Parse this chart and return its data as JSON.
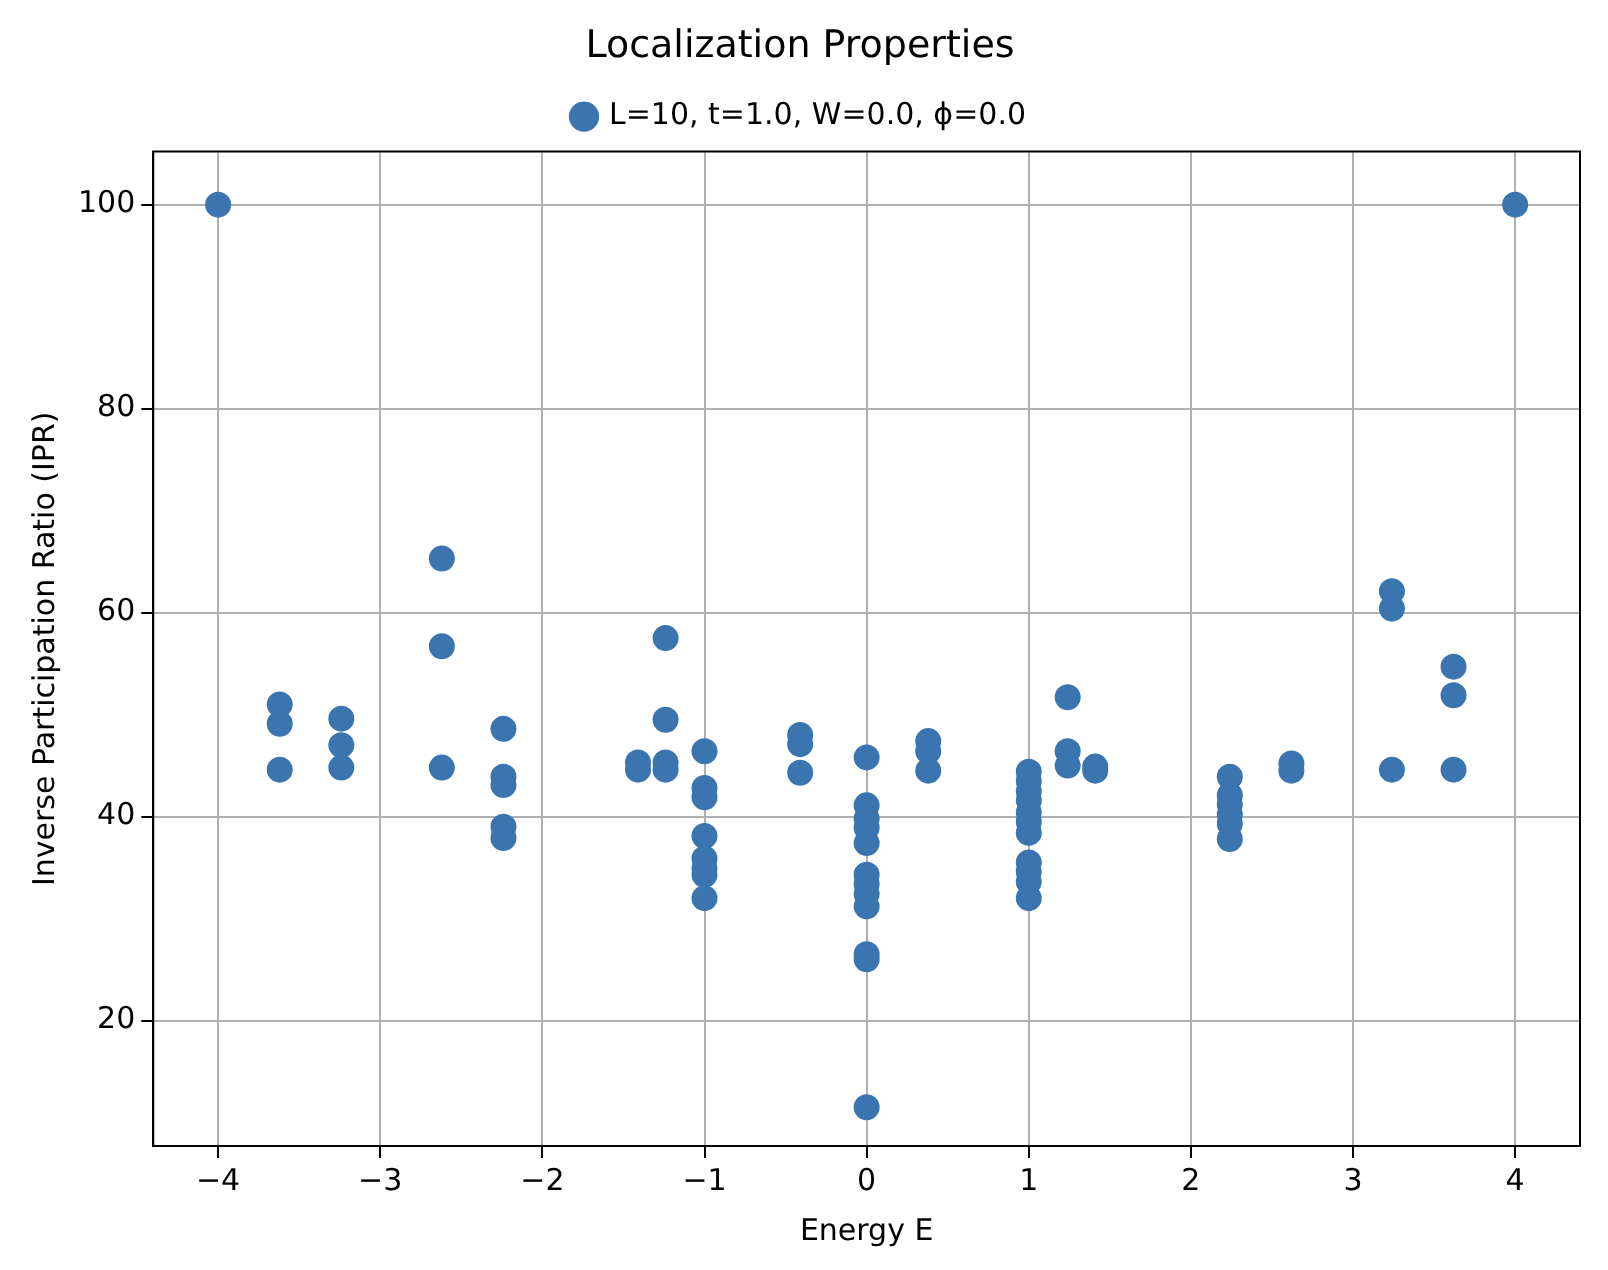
{
  "chart_data": {
    "type": "scatter",
    "title": "Localization Properties",
    "xlabel": "Energy E",
    "ylabel": "Inverse Participation Ratio (IPR)",
    "xlim": [
      -4.4,
      4.4
    ],
    "xticks": [
      {
        "value": -4,
        "label": "−4"
      },
      {
        "value": -3,
        "label": "−3"
      },
      {
        "value": -2,
        "label": "−2"
      },
      {
        "value": -1,
        "label": "−1"
      },
      0,
      1,
      2,
      3,
      4
    ],
    "ylim": [
      7.7,
      105.2
    ],
    "yticks": [
      20,
      40,
      60,
      80,
      100
    ],
    "grid": true,
    "legend": "top",
    "marker": "circle",
    "series": [
      {
        "name": "L=10, t=1.0, W=0.0, ϕ=0.0",
        "color": "#3a75b0",
        "x": [
          -4,
          4,
          -3.62,
          -3.62,
          -3.62,
          -3.24,
          -3.24,
          -3.24,
          -2.62,
          -2.62,
          -2.62,
          -2.24,
          -2.24,
          -2.24,
          -2.24,
          -2.24,
          -1.41,
          -1.41,
          -1.24,
          -1.24,
          -1.24,
          -1.24,
          -1,
          -1,
          -1,
          -1,
          -1,
          -1,
          -1,
          -1,
          -0.41,
          -0.41,
          -0.41,
          0,
          0,
          0,
          0,
          0,
          0,
          0,
          0,
          0,
          0,
          0,
          0,
          0.38,
          0.38,
          0.38,
          1,
          1,
          1,
          1,
          1,
          1,
          1,
          1,
          1,
          1,
          1,
          1.24,
          1.24,
          1.24,
          1.41,
          1.41,
          2.24,
          2.24,
          2.24,
          2.24,
          2.24,
          2.24,
          2.62,
          2.62,
          3.24,
          3.24,
          3.24,
          3.62,
          3.62,
          3.62
        ],
        "values": [
          100,
          100,
          51.0,
          49.1,
          44.6,
          49.6,
          47.0,
          44.8,
          65.3,
          56.7,
          44.8,
          48.6,
          43.9,
          43.1,
          39.0,
          37.9,
          45.3,
          44.6,
          57.5,
          49.5,
          45.3,
          44.6,
          46.4,
          42.8,
          41.9,
          38.1,
          35.9,
          34.9,
          34.3,
          32.0,
          48.0,
          47.1,
          44.3,
          45.8,
          41.1,
          39.8,
          38.9,
          37.4,
          34.3,
          33.4,
          32.4,
          31.2,
          26.5,
          26.0,
          11.5,
          47.4,
          46.4,
          44.5,
          44.4,
          43.5,
          42.5,
          41.6,
          40.4,
          39.5,
          38.4,
          35.5,
          34.6,
          33.6,
          32.0,
          51.7,
          46.4,
          45.0,
          44.9,
          44.5,
          43.9,
          42.1,
          41.2,
          40.2,
          39.3,
          37.8,
          45.2,
          44.5,
          62.1,
          60.4,
          44.6,
          54.7,
          51.9,
          44.6
        ]
      }
    ]
  }
}
